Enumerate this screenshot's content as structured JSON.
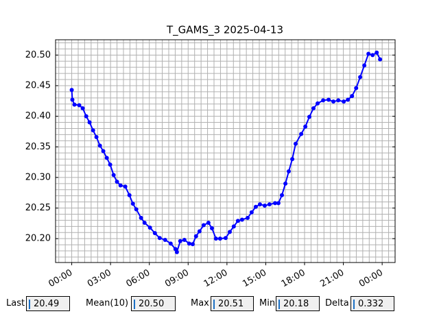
{
  "chart_data": {
    "type": "line",
    "title": "T_GAMS_3 2025-04-13",
    "x": [
      0.0,
      0.05,
      0.21,
      0.58,
      0.85,
      1.12,
      1.38,
      1.65,
      1.91,
      2.18,
      2.44,
      2.71,
      2.97,
      3.24,
      3.5,
      3.77,
      4.14,
      4.46,
      4.73,
      4.99,
      5.36,
      5.63,
      6.05,
      6.43,
      6.8,
      7.22,
      7.65,
      8.02,
      8.13,
      8.39,
      8.71,
      9.08,
      9.35,
      9.61,
      9.88,
      10.2,
      10.57,
      10.84,
      11.15,
      11.47,
      11.9,
      12.22,
      12.53,
      12.85,
      13.17,
      13.6,
      13.91,
      14.23,
      14.55,
      14.92,
      15.29,
      15.72,
      15.98,
      16.25,
      16.52,
      16.78,
      17.05,
      17.31,
      17.74,
      18.06,
      18.37,
      18.69,
      19.01,
      19.44,
      19.86,
      20.23,
      20.61,
      21.03,
      21.35,
      21.67,
      21.99,
      22.3,
      22.62,
      22.94,
      23.26,
      23.58,
      23.84
    ],
    "series": [
      {
        "color": "#0000ff",
        "values": [
          20.443,
          20.427,
          20.419,
          20.418,
          20.413,
          20.4,
          20.39,
          20.377,
          20.366,
          20.352,
          20.343,
          20.332,
          20.321,
          20.304,
          20.293,
          20.287,
          20.285,
          20.271,
          20.257,
          20.248,
          20.234,
          20.226,
          20.218,
          20.209,
          20.201,
          20.198,
          20.192,
          20.183,
          20.178,
          20.196,
          20.198,
          20.192,
          20.191,
          20.204,
          20.212,
          20.222,
          20.226,
          20.217,
          20.2,
          20.2,
          20.201,
          20.211,
          20.22,
          20.229,
          20.231,
          20.234,
          20.243,
          20.252,
          20.256,
          20.254,
          20.256,
          20.258,
          20.258,
          20.271,
          20.29,
          20.31,
          20.33,
          20.355,
          20.371,
          20.383,
          20.399,
          20.413,
          20.421,
          20.426,
          20.427,
          20.424,
          20.426,
          20.424,
          20.427,
          20.433,
          20.446,
          20.464,
          20.483,
          20.502,
          20.5,
          20.504,
          20.493
        ]
      }
    ],
    "xlim": [
      -1.25,
      25.0
    ],
    "ylim": [
      20.161,
      20.525
    ],
    "xticks": [
      {
        "value": 0,
        "label": "00:00"
      },
      {
        "value": 3,
        "label": "03:00"
      },
      {
        "value": 6,
        "label": "06:00"
      },
      {
        "value": 9,
        "label": "09:00"
      },
      {
        "value": 12,
        "label": "12:00"
      },
      {
        "value": 15,
        "label": "15:00"
      },
      {
        "value": 18,
        "label": "18:00"
      },
      {
        "value": 21,
        "label": "21:00"
      },
      {
        "value": 24,
        "label": "00:00"
      }
    ],
    "yticks": [
      {
        "value": 20.2,
        "label": "20.20"
      },
      {
        "value": 20.25,
        "label": "20.25"
      },
      {
        "value": 20.3,
        "label": "20.30"
      },
      {
        "value": 20.35,
        "label": "20.35"
      },
      {
        "value": 20.4,
        "label": "20.40"
      },
      {
        "value": 20.45,
        "label": "20.45"
      },
      {
        "value": 20.5,
        "label": "20.50"
      }
    ],
    "xminorticks": [
      -1.0,
      -0.5,
      0.0,
      0.5,
      1.0,
      1.5,
      2.0,
      2.5,
      3.0,
      3.5,
      4.0,
      4.5,
      5.0,
      5.5,
      6.0,
      6.5,
      7.0,
      7.5,
      8.0,
      8.5,
      9.0,
      9.5,
      10.0,
      10.5,
      11.0,
      11.5,
      12.0,
      12.5,
      13.0,
      13.5,
      14.0,
      14.5,
      15.0,
      15.5,
      16.0,
      16.5,
      17.0,
      17.5,
      18.0,
      18.5,
      19.0,
      19.5,
      20.0,
      20.5,
      21.0,
      21.5,
      22.0,
      22.5,
      23.0,
      23.5,
      24.0,
      24.5,
      25.0
    ],
    "yminorticks": [
      20.17,
      20.18,
      20.19,
      20.2,
      20.21,
      20.22,
      20.23,
      20.24,
      20.25,
      20.26,
      20.27,
      20.28,
      20.29,
      20.3,
      20.31,
      20.32,
      20.33,
      20.34,
      20.35,
      20.36,
      20.37,
      20.38,
      20.39,
      20.4,
      20.41,
      20.42,
      20.43,
      20.44,
      20.45,
      20.46,
      20.47,
      20.48,
      20.49,
      20.5,
      20.51,
      20.52
    ],
    "grid": true
  },
  "readouts": [
    {
      "label": "Last",
      "value": "20.49"
    },
    {
      "label": "Mean(10)",
      "value": "20.50"
    },
    {
      "label": "Max",
      "value": "20.51"
    },
    {
      "label": "Min",
      "value": "20.18"
    },
    {
      "label": "Delta",
      "value": "0.332"
    }
  ]
}
